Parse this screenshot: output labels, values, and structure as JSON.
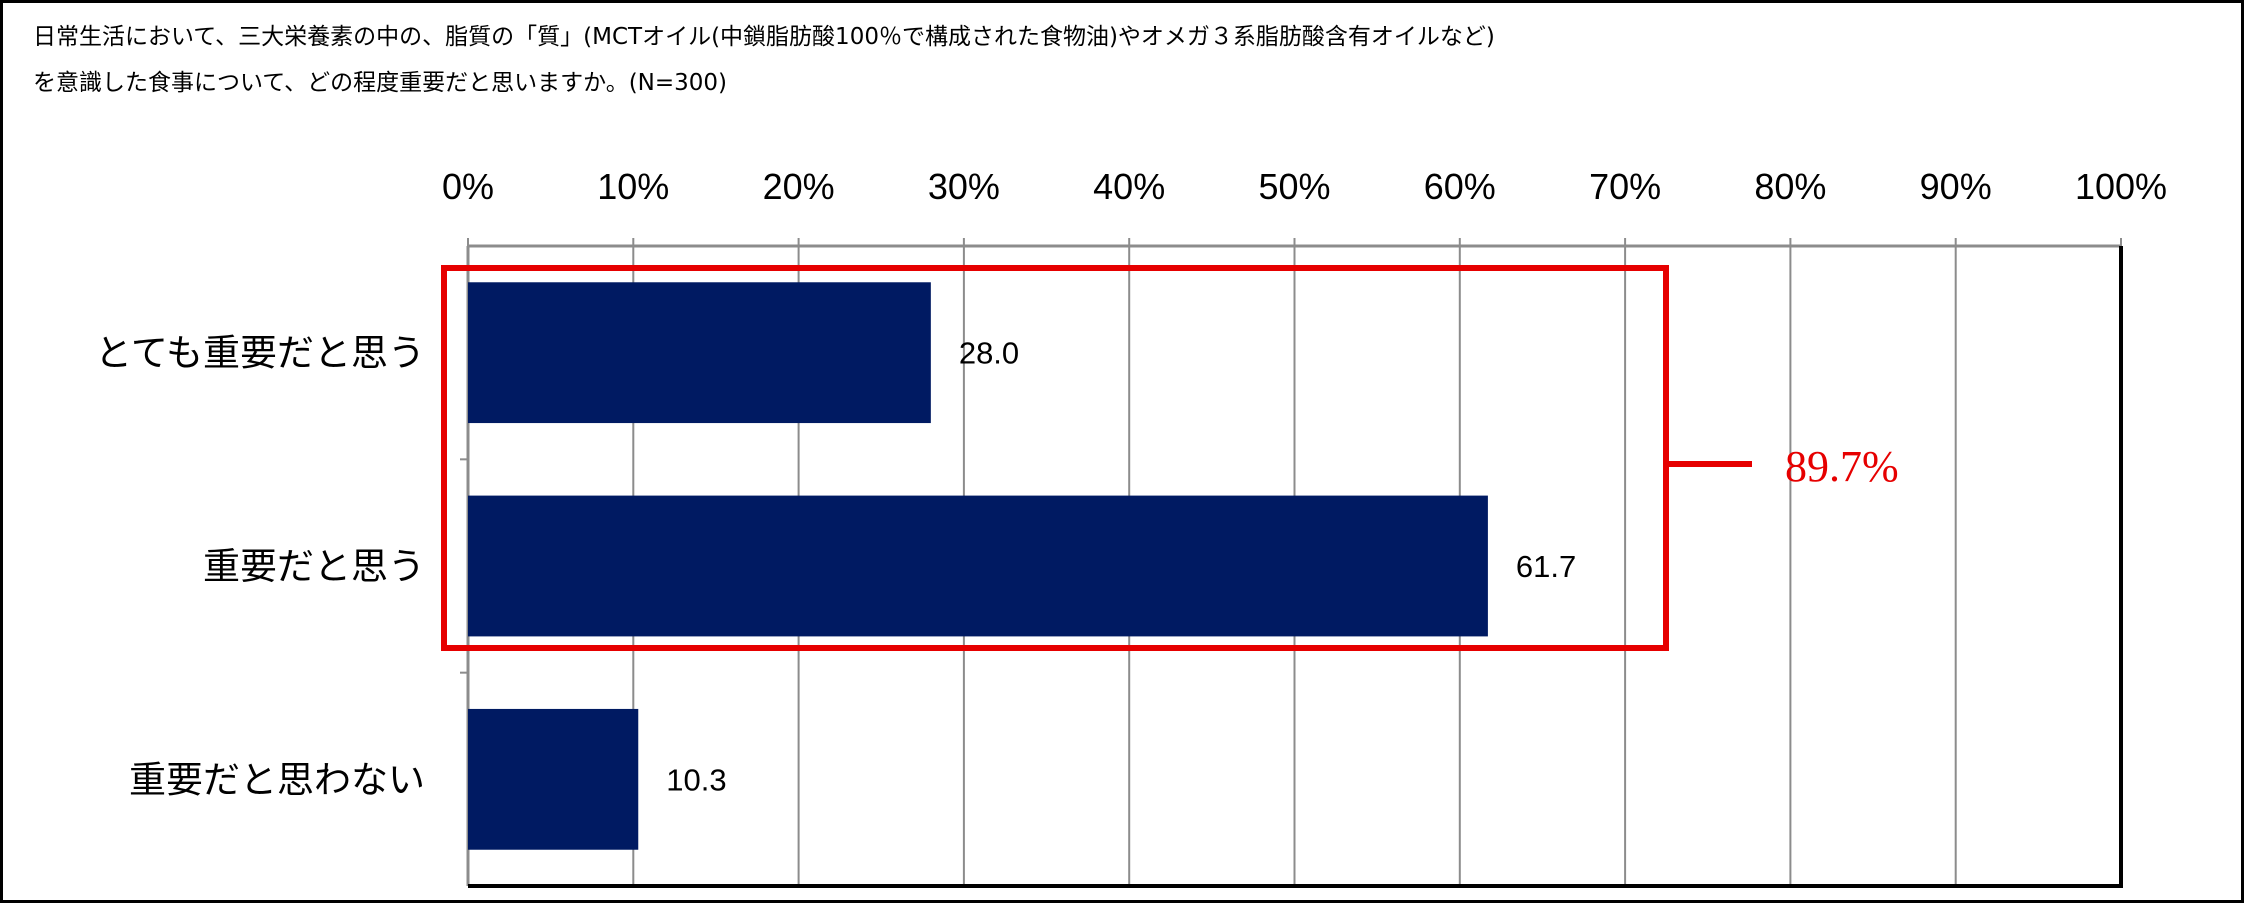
{
  "title_lines": [
    "日常生活において、三大栄養素の中の、脂質の「質」(MCTオイル(中鎖脂肪酸100％で構成された食物油)やオメガ３系脂肪酸含有オイルなど)",
    "を意識した食事について、どの程度重要だと思いますか。(N=300)"
  ],
  "chart_data": {
    "type": "bar",
    "orientation": "horizontal",
    "categories": [
      "とても重要だと思う",
      "重要だと思う",
      "重要だと思わない"
    ],
    "values": [
      28.0,
      61.7,
      10.3
    ],
    "value_labels": [
      "28.0",
      "61.7",
      "10.3"
    ],
    "xlim": [
      0,
      100
    ],
    "x_ticks": [
      "0%",
      "10%",
      "20%",
      "30%",
      "40%",
      "50%",
      "60%",
      "70%",
      "80%",
      "90%",
      "100%"
    ],
    "x_axis_position": "top",
    "grid": true,
    "bar_color": "#001A62",
    "annotation": {
      "text": "89.7%",
      "color": "#E60000",
      "groups": [
        "とても重要だと思う",
        "重要だと思う"
      ]
    }
  }
}
